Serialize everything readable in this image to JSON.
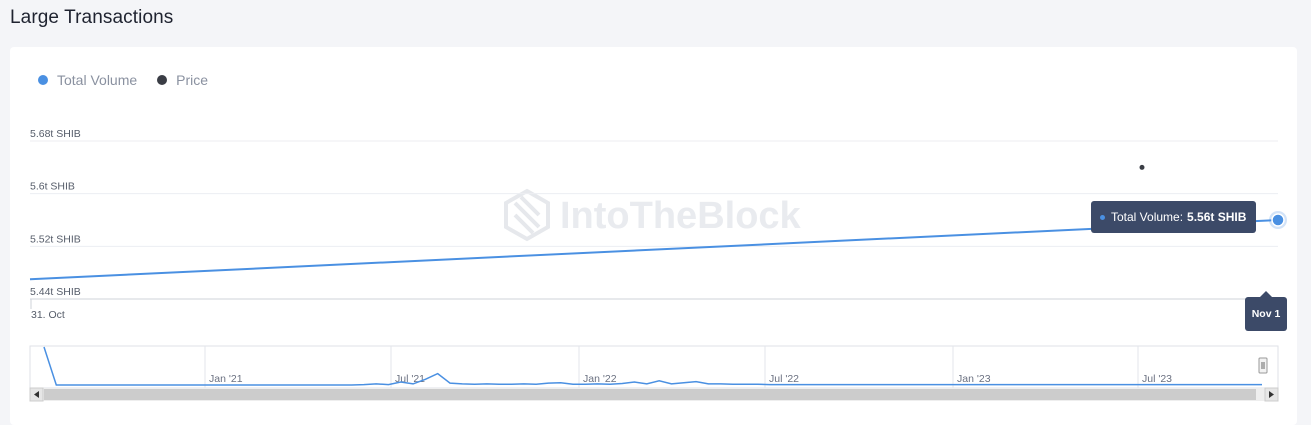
{
  "page": {
    "title": "Large Transactions"
  },
  "legend": [
    {
      "label": "Total Volume",
      "color": "#4a90e2"
    },
    {
      "label": "Price",
      "color": "#3a3d45"
    }
  ],
  "watermark": "IntoTheBlock",
  "tooltip": {
    "label": "Total Volume:",
    "value": "5.56t SHIB"
  },
  "x_badge": "Nov 1",
  "chart_data": [
    {
      "type": "line",
      "title": "",
      "ylabel": "",
      "yticks": [
        "5.44t SHIB",
        "5.52t SHIB",
        "5.6t SHIB",
        "5.68t SHIB"
      ],
      "ylim": [
        5.44,
        5.68
      ],
      "yunit": "t SHIB",
      "xticks": [
        "31. Oct"
      ],
      "grid": true,
      "legend_position": "top-left",
      "series": [
        {
          "name": "Total Volume",
          "color": "#4a90e2",
          "x": [
            "31. Oct",
            "Nov 1"
          ],
          "y": [
            5.47,
            5.56
          ]
        },
        {
          "name": "Price",
          "color": "#3a3d45",
          "x": [
            "Nov 1"
          ],
          "y": [
            5.64
          ]
        }
      ]
    },
    {
      "type": "line",
      "title": "",
      "xticks": [
        "Jan '21",
        "Jul '21",
        "Jan '22",
        "Jul '22",
        "Jan '23",
        "Jul '23"
      ],
      "series": [
        {
          "name": "Total Volume",
          "color": "#4a90e2",
          "y": [
            10,
            0,
            0,
            0,
            0,
            0,
            0,
            0,
            0,
            0,
            0,
            0,
            0,
            0,
            0,
            0,
            0,
            0,
            0,
            0,
            0,
            0,
            0,
            0,
            0,
            0,
            0.1,
            0.3,
            0.1,
            0.8,
            0.3,
            1.5,
            3.0,
            0.5,
            0.3,
            0.2,
            0.3,
            0.2,
            0.2,
            0.3,
            0.2,
            0.5,
            0.6,
            0.2,
            0.2,
            0.3,
            0.2,
            0.4,
            0.8,
            0.3,
            1.1,
            0.3,
            0.6,
            0.9,
            0.3,
            0.3,
            0.2,
            0.2,
            0.2,
            0.1,
            0.1,
            0.1,
            0.1,
            0.1,
            0.1,
            0.1,
            0.1,
            0.1,
            0.1,
            0.1,
            0.1,
            0.1,
            0.1,
            0.1,
            0.1,
            0.1,
            0.1,
            0.1,
            0.1,
            0.1,
            0.1,
            0.1,
            0.1,
            0.1,
            0.1,
            0.1,
            0.1,
            0.1,
            0.1,
            0.1,
            0.1,
            0.1,
            0.1,
            0.1,
            0.1,
            0.1,
            0.1,
            0.1,
            0.1,
            0.1
          ]
        }
      ]
    }
  ]
}
